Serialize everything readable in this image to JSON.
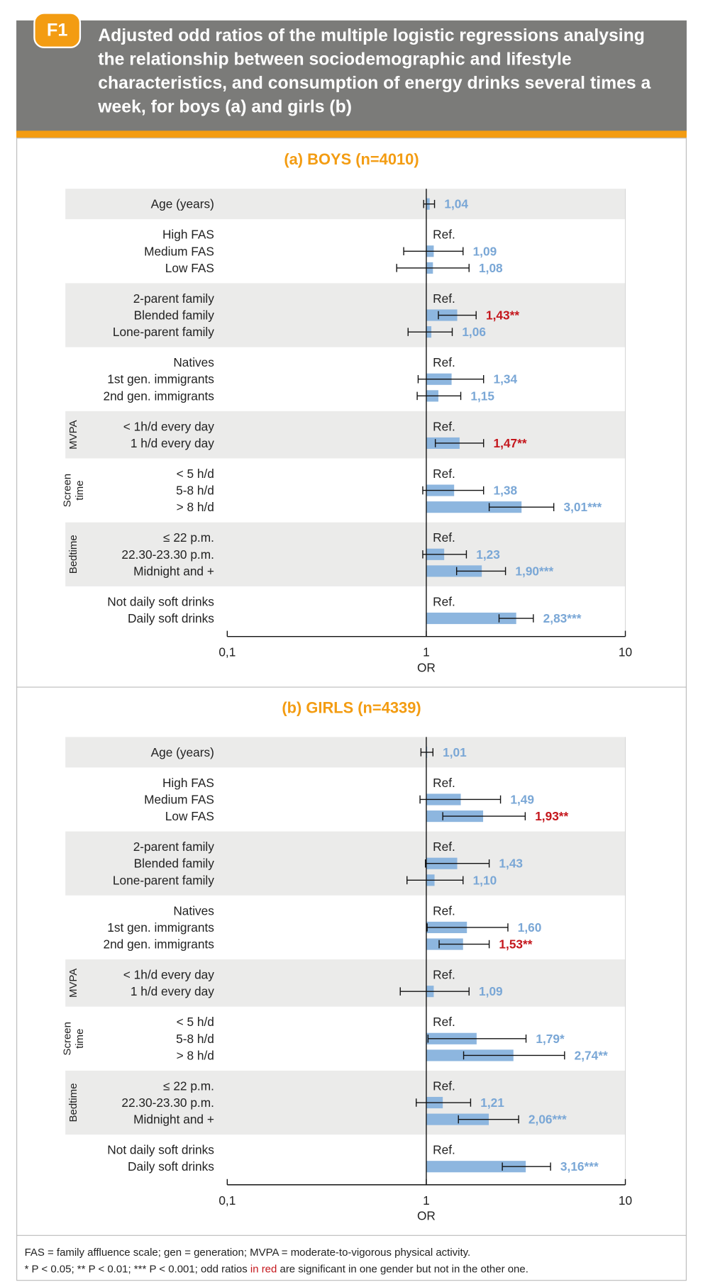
{
  "header": {
    "badge": "F1",
    "title_lines": [
      "Adjusted odd ratios of the multiple logistic regressions analysing",
      "the relationship between sociodemographic and lifestyle",
      "characteristics, and consumption of energy drinks several times a",
      "week, for boys (a) and girls (b)"
    ]
  },
  "chart_data": [
    {
      "type": "forest",
      "title": "(a) BOYS (n=4010)",
      "xlabel": "OR",
      "log_x": true,
      "xlim": [
        0.1,
        10
      ],
      "xticks": [
        {
          "value": 0.1,
          "label": "0,1"
        },
        1,
        10
      ],
      "bar_color": "#8db6df",
      "band_color": "#ebebea",
      "groups": [
        {
          "categories": [
            "Age (years)"
          ],
          "values": [
            1.04
          ],
          "ci_low": [
            0.97
          ],
          "ci_high": [
            1.1
          ],
          "value_labels": [
            "1,04"
          ],
          "label_colors": [
            "#7aa7d6"
          ]
        },
        {
          "categories": [
            "High FAS",
            "Medium FAS",
            "Low FAS"
          ],
          "values": [
            1,
            1.09,
            1.08
          ],
          "ci_low": [
            null,
            0.77,
            0.71
          ],
          "ci_high": [
            null,
            1.53,
            1.64
          ],
          "value_labels": [
            "Ref.",
            "1,09",
            "1,08"
          ],
          "label_colors": [
            "#222222",
            "#7aa7d6",
            "#7aa7d6"
          ]
        },
        {
          "categories": [
            "2-parent family",
            "Blended family",
            "Lone-parent family"
          ],
          "values": [
            1,
            1.43,
            1.06
          ],
          "ci_low": [
            null,
            1.15,
            0.81
          ],
          "ci_high": [
            null,
            1.78,
            1.35
          ],
          "value_labels": [
            "Ref.",
            "1,43**",
            "1,06"
          ],
          "label_colors": [
            "#222222",
            "#c4161c",
            "#7aa7d6"
          ]
        },
        {
          "categories": [
            "Natives",
            "1st gen. immigrants",
            "2nd gen. immigrants"
          ],
          "values": [
            1,
            1.34,
            1.15
          ],
          "ci_low": [
            null,
            0.91,
            0.9
          ],
          "ci_high": [
            null,
            1.94,
            1.49
          ],
          "value_labels": [
            "Ref.",
            "1,34",
            "1,15"
          ],
          "label_colors": [
            "#222222",
            "#7aa7d6",
            "#7aa7d6"
          ]
        },
        {
          "name_lines": [
            "MVPA"
          ],
          "categories": [
            "< 1h/d every day",
            "1 h/d every day"
          ],
          "values": [
            1,
            1.47
          ],
          "ci_low": [
            null,
            1.11
          ],
          "ci_high": [
            null,
            1.94
          ],
          "value_labels": [
            "Ref.",
            "1,47**"
          ],
          "label_colors": [
            "#222222",
            "#c4161c"
          ]
        },
        {
          "name_lines": [
            "Screen",
            "time"
          ],
          "categories": [
            "< 5 h/d",
            "5-8 h/d",
            "> 8 h/d"
          ],
          "values": [
            1,
            1.38,
            3.01
          ],
          "ci_low": [
            null,
            0.96,
            2.07
          ],
          "ci_high": [
            null,
            1.94,
            4.37
          ],
          "value_labels": [
            "Ref.",
            "1,38",
            "3,01***"
          ],
          "label_colors": [
            "#222222",
            "#7aa7d6",
            "#7aa7d6"
          ]
        },
        {
          "name_lines": [
            "Bedtime"
          ],
          "categories": [
            "≤ 22 p.m.",
            "22.30-23.30 p.m.",
            "Midnight and +"
          ],
          "values": [
            1,
            1.23,
            1.9
          ],
          "ci_low": [
            null,
            0.96,
            1.42
          ],
          "ci_high": [
            null,
            1.59,
            2.5
          ],
          "value_labels": [
            "Ref.",
            "1,23",
            "1,90***"
          ],
          "label_colors": [
            "#222222",
            "#7aa7d6",
            "#7aa7d6"
          ]
        },
        {
          "categories": [
            "Not daily soft drinks",
            "Daily soft drinks"
          ],
          "values": [
            1,
            2.83
          ],
          "ci_low": [
            null,
            2.32
          ],
          "ci_high": [
            null,
            3.45
          ],
          "value_labels": [
            "Ref.",
            "2,83***"
          ],
          "label_colors": [
            "#222222",
            "#7aa7d6"
          ]
        }
      ]
    },
    {
      "type": "forest",
      "title": "(b) GIRLS (n=4339)",
      "xlabel": "OR",
      "log_x": true,
      "xlim": [
        0.1,
        10
      ],
      "xticks": [
        {
          "value": 0.1,
          "label": "0,1"
        },
        1,
        10
      ],
      "bar_color": "#8db6df",
      "band_color": "#ebebea",
      "groups": [
        {
          "categories": [
            "Age (years)"
          ],
          "values": [
            1.01
          ],
          "ci_low": [
            0.94
          ],
          "ci_high": [
            1.08
          ],
          "value_labels": [
            "1,01"
          ],
          "label_colors": [
            "#7aa7d6"
          ]
        },
        {
          "categories": [
            "High FAS",
            "Medium FAS",
            "Low FAS"
          ],
          "values": [
            1,
            1.49,
            1.93
          ],
          "ci_low": [
            null,
            0.93,
            1.21
          ],
          "ci_high": [
            null,
            2.36,
            3.14
          ],
          "value_labels": [
            "Ref.",
            "1,49",
            "1,93**"
          ],
          "label_colors": [
            "#222222",
            "#7aa7d6",
            "#c4161c"
          ]
        },
        {
          "categories": [
            "2-parent family",
            "Blended family",
            "Lone-parent family"
          ],
          "values": [
            1,
            1.43,
            1.1
          ],
          "ci_low": [
            null,
            0.99,
            0.8
          ],
          "ci_high": [
            null,
            2.07,
            1.53
          ],
          "value_labels": [
            "Ref.",
            "1,43",
            "1,10"
          ],
          "label_colors": [
            "#222222",
            "#7aa7d6",
            "#7aa7d6"
          ]
        },
        {
          "categories": [
            "Natives",
            "1st gen. immigrants",
            "2nd gen. immigrants"
          ],
          "values": [
            1,
            1.6,
            1.53
          ],
          "ci_low": [
            null,
            1.01,
            1.16
          ],
          "ci_high": [
            null,
            2.57,
            2.07
          ],
          "value_labels": [
            "Ref.",
            "1,60",
            "1,53**"
          ],
          "label_colors": [
            "#222222",
            "#7aa7d6",
            "#c4161c"
          ]
        },
        {
          "name_lines": [
            "MVPA"
          ],
          "categories": [
            "< 1h/d every day",
            "1 h/d every day"
          ],
          "values": [
            1,
            1.09
          ],
          "ci_low": [
            null,
            0.74
          ],
          "ci_high": [
            null,
            1.64
          ],
          "value_labels": [
            "Ref.",
            "1,09"
          ],
          "label_colors": [
            "#222222",
            "#7aa7d6"
          ]
        },
        {
          "name_lines": [
            "Screen",
            "time"
          ],
          "categories": [
            "< 5 h/d",
            "5-8 h/d",
            "> 8 h/d"
          ],
          "values": [
            1,
            1.79,
            2.74
          ],
          "ci_low": [
            null,
            1.02,
            1.54
          ],
          "ci_high": [
            null,
            3.17,
            4.95
          ],
          "value_labels": [
            "Ref.",
            "1,79*",
            "2,74**"
          ],
          "label_colors": [
            "#222222",
            "#7aa7d6",
            "#7aa7d6"
          ]
        },
        {
          "name_lines": [
            "Bedtime"
          ],
          "categories": [
            "≤ 22 p.m.",
            "22.30-23.30 p.m.",
            "Midnight and +"
          ],
          "values": [
            1,
            1.21,
            2.06
          ],
          "ci_low": [
            null,
            0.89,
            1.45
          ],
          "ci_high": [
            null,
            1.67,
            2.91
          ],
          "value_labels": [
            "Ref.",
            "1,21",
            "2,06***"
          ],
          "label_colors": [
            "#222222",
            "#7aa7d6",
            "#7aa7d6"
          ]
        },
        {
          "categories": [
            "Not daily soft drinks",
            "Daily soft drinks"
          ],
          "values": [
            1,
            3.16
          ],
          "ci_low": [
            null,
            2.41
          ],
          "ci_high": [
            null,
            4.21
          ],
          "value_labels": [
            "Ref.",
            "3,16***"
          ],
          "label_colors": [
            "#222222",
            "#7aa7d6"
          ]
        }
      ]
    }
  ],
  "footnotes": {
    "line1": "FAS = family affluence scale; gen = generation; MVPA = moderate-to-vigorous physical activity.",
    "line2": [
      "* P < 0.05; ** P < 0.01; *** P < 0.001; odd ratios ",
      "in red",
      " are significant in one gender but not in the other one."
    ]
  }
}
